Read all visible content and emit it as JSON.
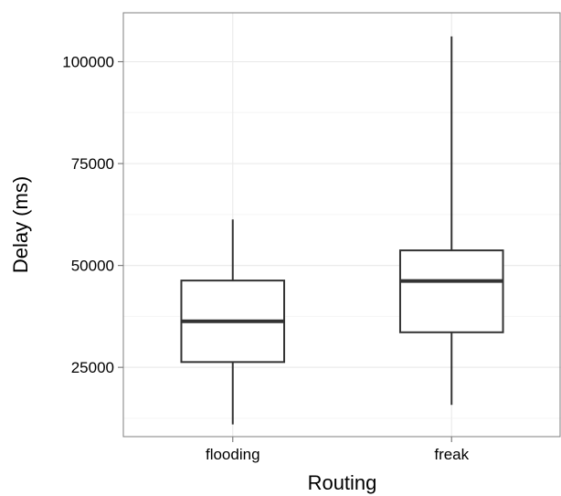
{
  "chart_data": {
    "type": "boxplot",
    "xlabel": "Routing",
    "ylabel": "Delay (ms)",
    "categories": [
      "flooding",
      "freak"
    ],
    "boxes": [
      {
        "category": "flooding",
        "min": 11000,
        "q1": 26300,
        "median": 36300,
        "q3": 46300,
        "max": 61300
      },
      {
        "category": "freak",
        "min": 15800,
        "q1": 33600,
        "median": 46200,
        "q3": 53700,
        "max": 106200
      }
    ],
    "ylim": [
      8000,
      112000
    ],
    "yticks": [
      25000,
      50000,
      75000,
      100000
    ],
    "ytick_labels": [
      "25000",
      "50000",
      "75000",
      "100000"
    ],
    "grid": true,
    "colors": {
      "box_stroke": "#333333",
      "grid": "#ebebeb",
      "panel_border": "#7f7f7f"
    }
  }
}
